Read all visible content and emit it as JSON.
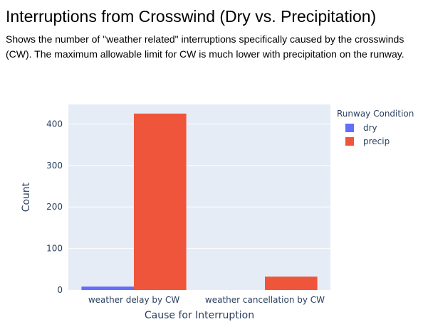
{
  "title": "Interruptions from Crosswind (Dry vs. Precipitation)",
  "subtitle": "Shows the number of \"weather related\" interruptions specifically caused by the crosswinds (CW). The maximum allowable limit for CW is much lower with precipitation on the runway.",
  "colors": {
    "plot_bg": "#e5ecf6",
    "grid": "#ffffff",
    "text": "#2a3f5f",
    "dry": "#636efa",
    "precip": "#ef553b"
  },
  "chart_data": {
    "type": "bar",
    "barmode": "group",
    "title": "Interruptions from Crosswind (Dry vs. Precipitation)",
    "xlabel": "Cause for Interruption",
    "ylabel": "Count",
    "categories": [
      "weather delay by CW",
      "weather cancellation by CW"
    ],
    "series": [
      {
        "name": "dry",
        "color": "#636efa",
        "values": [
          8,
          0
        ]
      },
      {
        "name": "precip",
        "color": "#ef553b",
        "values": [
          425,
          32
        ]
      }
    ],
    "ylim": [
      0,
      447
    ],
    "yticks": [
      0,
      100,
      200,
      300,
      400
    ],
    "grid": true,
    "legend": {
      "title": "Runway Condition",
      "placement": "top-right"
    }
  }
}
